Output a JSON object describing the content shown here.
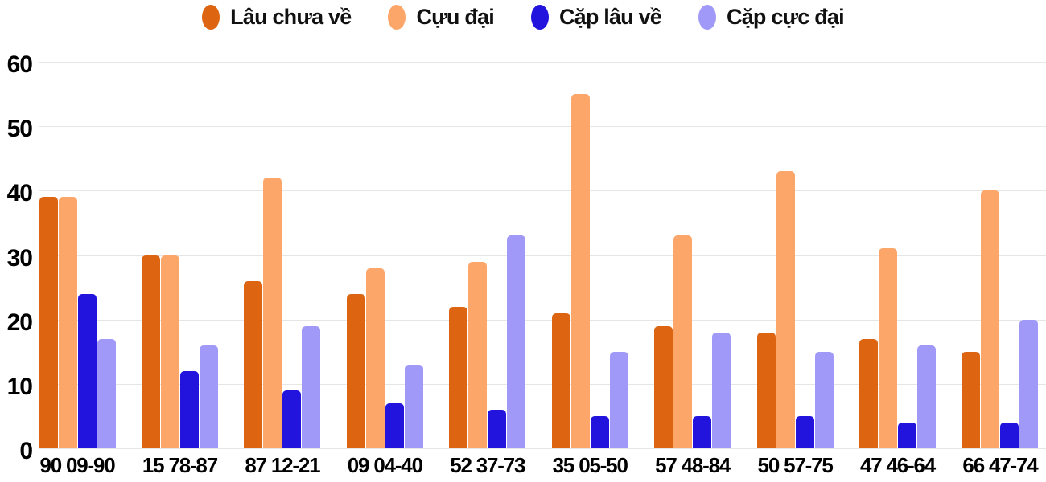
{
  "chart_data": {
    "type": "bar",
    "title": "",
    "xlabel": "",
    "ylabel": "",
    "legend_position": "top",
    "grid": true,
    "gridline_color": "#e6e6e6",
    "background_color": "#ffffff",
    "y_axis": {
      "min": 0,
      "max": 60,
      "step": 10,
      "ticks": [
        "0",
        "10",
        "20",
        "30",
        "40",
        "50",
        "60"
      ]
    },
    "categories": [
      "90 09-90",
      "15 78-87",
      "87 12-21",
      "09 04-40",
      "52 37-73",
      "35 05-50",
      "57 48-84",
      "50 57-75",
      "47 46-64",
      "66 47-74"
    ],
    "series": [
      {
        "name": "Lâu chưa về",
        "color": "#dd6511",
        "values": [
          39,
          30,
          26,
          24,
          22,
          21,
          19,
          18,
          17,
          15
        ]
      },
      {
        "name": "Cựu đại",
        "color": "#fda66a",
        "values": [
          39,
          30,
          42,
          28,
          29,
          55,
          33,
          43,
          31,
          40
        ]
      },
      {
        "name": "Cặp lâu về",
        "color": "#2213dd",
        "values": [
          24,
          12,
          9,
          7,
          6,
          5,
          5,
          5,
          4,
          4
        ]
      },
      {
        "name": "Cặp cực đại",
        "color": "#a199f8",
        "values": [
          17,
          16,
          19,
          13,
          33,
          15,
          18,
          15,
          16,
          20
        ]
      }
    ]
  }
}
